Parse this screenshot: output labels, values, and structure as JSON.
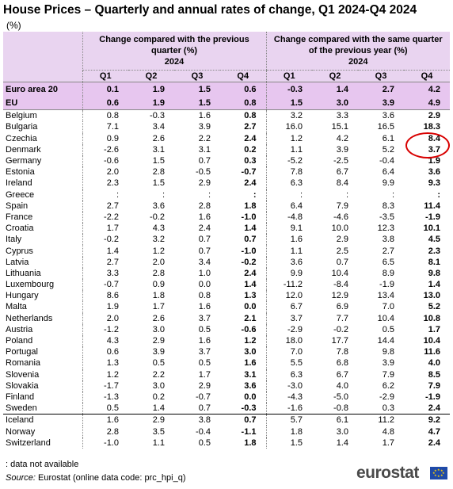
{
  "title": "House Prices – Quarterly and annual rates of change, Q1 2024-Q4 2024",
  "unit": "(%)",
  "group_headers": {
    "left": "Change compared with the previous quarter (%)",
    "left_year": "2024",
    "right": "Change compared with the same quarter of the previous year (%)",
    "right_year": "2024"
  },
  "quarters": [
    "Q1",
    "Q2",
    "Q3",
    "Q4",
    "Q1",
    "Q2",
    "Q3",
    "Q4"
  ],
  "chart_data": {
    "type": "table",
    "columns": [
      "Q1",
      "Q2",
      "Q3",
      "Q4",
      "Q1",
      "Q2",
      "Q3",
      "Q4"
    ],
    "aggregates": [
      {
        "country": "Euro area 20",
        "values": [
          "0.1",
          "1.9",
          "1.5",
          "0.6",
          "-0.3",
          "1.4",
          "2.7",
          "4.2"
        ]
      },
      {
        "country": "EU",
        "values": [
          "0.6",
          "1.9",
          "1.5",
          "0.8",
          "1.5",
          "3.0",
          "3.9",
          "4.9"
        ]
      }
    ],
    "rows": [
      {
        "country": "Belgium",
        "values": [
          "0.8",
          "-0.3",
          "1.6",
          "0.8",
          "3.2",
          "3.3",
          "3.6",
          "2.9"
        ]
      },
      {
        "country": "Bulgaria",
        "values": [
          "7.1",
          "3.4",
          "3.9",
          "2.7",
          "16.0",
          "15.1",
          "16.5",
          "18.3"
        ]
      },
      {
        "country": "Czechia",
        "values": [
          "0.9",
          "2.6",
          "2.2",
          "2.4",
          "1.2",
          "4.2",
          "6.1",
          "8.4"
        ]
      },
      {
        "country": "Denmark",
        "values": [
          "-2.6",
          "3.1",
          "3.1",
          "0.2",
          "1.1",
          "3.9",
          "5.2",
          "3.7"
        ]
      },
      {
        "country": "Germany",
        "values": [
          "-0.6",
          "1.5",
          "0.7",
          "0.3",
          "-5.2",
          "-2.5",
          "-0.4",
          "1.9"
        ]
      },
      {
        "country": "Estonia",
        "values": [
          "2.0",
          "2.8",
          "-0.5",
          "-0.7",
          "7.8",
          "6.7",
          "6.4",
          "3.6"
        ]
      },
      {
        "country": "Ireland",
        "values": [
          "2.3",
          "1.5",
          "2.9",
          "2.4",
          "6.3",
          "8.4",
          "9.9",
          "9.3"
        ]
      },
      {
        "country": "Greece",
        "values": [
          ":",
          ":",
          ":",
          ":",
          ":",
          ":",
          ":",
          ":"
        ]
      },
      {
        "country": "Spain",
        "values": [
          "2.7",
          "3.6",
          "2.8",
          "1.8",
          "6.4",
          "7.9",
          "8.3",
          "11.4"
        ]
      },
      {
        "country": "France",
        "values": [
          "-2.2",
          "-0.2",
          "1.6",
          "-1.0",
          "-4.8",
          "-4.6",
          "-3.5",
          "-1.9"
        ]
      },
      {
        "country": "Croatia",
        "values": [
          "1.7",
          "4.3",
          "2.4",
          "1.4",
          "9.1",
          "10.0",
          "12.3",
          "10.1"
        ]
      },
      {
        "country": "Italy",
        "values": [
          "-0.2",
          "3.2",
          "0.7",
          "0.7",
          "1.6",
          "2.9",
          "3.8",
          "4.5"
        ]
      },
      {
        "country": "Cyprus",
        "values": [
          "1.4",
          "1.2",
          "0.7",
          "-1.0",
          "1.1",
          "2.5",
          "2.7",
          "2.3"
        ]
      },
      {
        "country": "Latvia",
        "values": [
          "2.7",
          "2.0",
          "3.4",
          "-0.2",
          "3.6",
          "0.7",
          "6.5",
          "8.1"
        ]
      },
      {
        "country": "Lithuania",
        "values": [
          "3.3",
          "2.8",
          "1.0",
          "2.4",
          "9.9",
          "10.4",
          "8.9",
          "9.8"
        ]
      },
      {
        "country": "Luxembourg",
        "values": [
          "-0.7",
          "0.9",
          "0.0",
          "1.4",
          "-11.2",
          "-8.4",
          "-1.9",
          "1.4"
        ]
      },
      {
        "country": "Hungary",
        "values": [
          "8.6",
          "1.8",
          "0.8",
          "1.3",
          "12.0",
          "12.9",
          "13.4",
          "13.0"
        ]
      },
      {
        "country": "Malta",
        "values": [
          "1.9",
          "1.7",
          "1.6",
          "0.0",
          "6.7",
          "6.9",
          "7.0",
          "5.2"
        ]
      },
      {
        "country": "Netherlands",
        "values": [
          "2.0",
          "2.6",
          "3.7",
          "2.1",
          "3.7",
          "7.7",
          "10.4",
          "10.8"
        ]
      },
      {
        "country": "Austria",
        "values": [
          "-1.2",
          "3.0",
          "0.5",
          "-0.6",
          "-2.9",
          "-0.2",
          "0.5",
          "1.7"
        ]
      },
      {
        "country": "Poland",
        "values": [
          "4.3",
          "2.9",
          "1.6",
          "1.2",
          "18.0",
          "17.7",
          "14.4",
          "10.4"
        ]
      },
      {
        "country": "Portugal",
        "values": [
          "0.6",
          "3.9",
          "3.7",
          "3.0",
          "7.0",
          "7.8",
          "9.8",
          "11.6"
        ]
      },
      {
        "country": "Romania",
        "values": [
          "1.3",
          "0.5",
          "0.5",
          "1.6",
          "5.5",
          "6.8",
          "3.9",
          "4.0"
        ]
      },
      {
        "country": "Slovenia",
        "values": [
          "1.2",
          "2.2",
          "1.7",
          "3.1",
          "6.3",
          "6.7",
          "7.9",
          "8.5"
        ]
      },
      {
        "country": "Slovakia",
        "values": [
          "-1.7",
          "3.0",
          "2.9",
          "3.6",
          "-3.0",
          "4.0",
          "6.2",
          "7.9"
        ]
      },
      {
        "country": "Finland",
        "values": [
          "-1.3",
          "0.2",
          "-0.7",
          "0.0",
          "-4.3",
          "-5.0",
          "-2.9",
          "-1.9"
        ]
      },
      {
        "country": "Sweden",
        "values": [
          "0.5",
          "1.4",
          "0.7",
          "-0.3",
          "-1.6",
          "-0.8",
          "0.3",
          "2.4"
        ]
      },
      {
        "country": "Iceland",
        "values": [
          "1.6",
          "2.9",
          "3.8",
          "0.7",
          "5.7",
          "6.1",
          "11.2",
          "9.2"
        ]
      },
      {
        "country": "Norway",
        "values": [
          "2.8",
          "3.5",
          "-0.4",
          "-1.1",
          "1.8",
          "3.0",
          "4.8",
          "4.7"
        ]
      },
      {
        "country": "Switzerland",
        "values": [
          "-1.0",
          "1.1",
          "0.5",
          "1.8",
          "1.5",
          "1.4",
          "1.7",
          "2.4"
        ]
      }
    ],
    "highlighted_cell": {
      "country": "Czechia",
      "column": "Q4",
      "group": "annual",
      "marker_color": "#d80000"
    }
  },
  "footnote": ":  data not available",
  "source_label": "Source:",
  "source_text": "Eurostat (online data code: prc_hpi_q)",
  "logo_text": "eurostat",
  "colors": {
    "header_bg": "#e9d4f0",
    "aggregate_bg": "#e7c6ef",
    "marker": "#d80000"
  }
}
